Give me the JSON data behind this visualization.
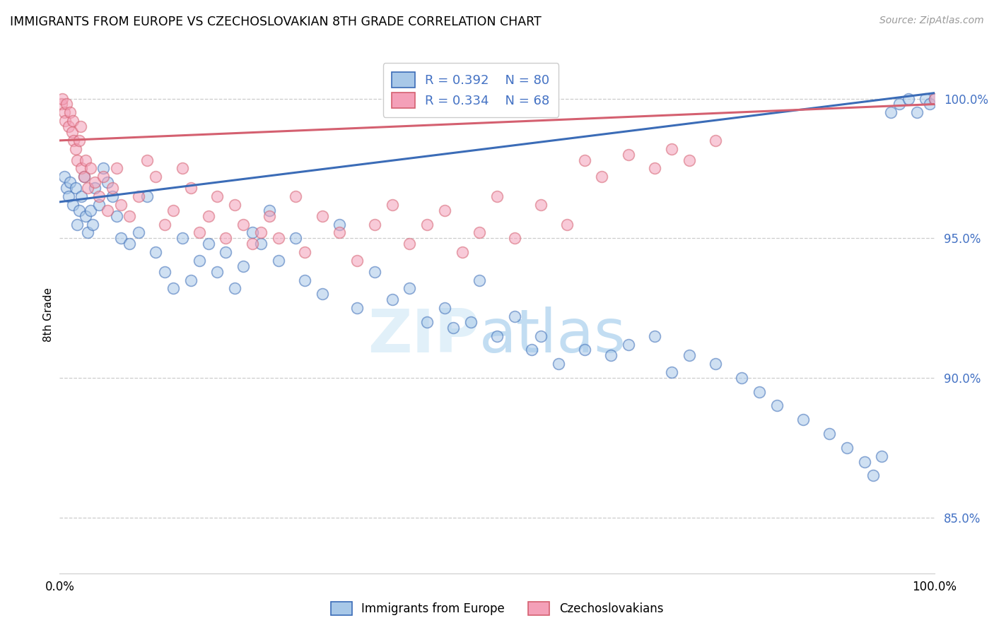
{
  "title": "IMMIGRANTS FROM EUROPE VS CZECHOSLOVAKIAN 8TH GRADE CORRELATION CHART",
  "source": "Source: ZipAtlas.com",
  "ylabel": "8th Grade",
  "legend_blue_label": "Immigrants from Europe",
  "legend_pink_label": "Czechoslovakians",
  "legend_blue_r": "R = 0.392",
  "legend_blue_n": "N = 80",
  "legend_pink_r": "R = 0.334",
  "legend_pink_n": "N = 68",
  "blue_color": "#A8C8E8",
  "pink_color": "#F4A0B8",
  "blue_line_color": "#3B6CB7",
  "pink_line_color": "#D46070",
  "ylim_min": 83.0,
  "ylim_max": 101.5,
  "xlim_min": 0.0,
  "xlim_max": 100.0,
  "y_ticks": [
    85.0,
    90.0,
    95.0,
    100.0
  ],
  "blue_scatter_x": [
    0.5,
    0.8,
    1.0,
    1.2,
    1.5,
    1.8,
    2.0,
    2.2,
    2.5,
    2.8,
    3.0,
    3.2,
    3.5,
    3.8,
    4.0,
    4.5,
    5.0,
    5.5,
    6.0,
    6.5,
    7.0,
    8.0,
    9.0,
    10.0,
    11.0,
    12.0,
    13.0,
    14.0,
    15.0,
    16.0,
    17.0,
    18.0,
    19.0,
    20.0,
    21.0,
    22.0,
    23.0,
    24.0,
    25.0,
    27.0,
    28.0,
    30.0,
    32.0,
    34.0,
    36.0,
    38.0,
    40.0,
    42.0,
    44.0,
    45.0,
    47.0,
    48.0,
    50.0,
    52.0,
    54.0,
    55.0,
    57.0,
    60.0,
    63.0,
    65.0,
    68.0,
    70.0,
    72.0,
    75.0,
    78.0,
    80.0,
    82.0,
    85.0,
    88.0,
    90.0,
    92.0,
    93.0,
    94.0,
    95.0,
    96.0,
    97.0,
    98.0,
    99.0,
    99.5,
    100.0
  ],
  "blue_scatter_y": [
    97.2,
    96.8,
    96.5,
    97.0,
    96.2,
    96.8,
    95.5,
    96.0,
    96.5,
    97.2,
    95.8,
    95.2,
    96.0,
    95.5,
    96.8,
    96.2,
    97.5,
    97.0,
    96.5,
    95.8,
    95.0,
    94.8,
    95.2,
    96.5,
    94.5,
    93.8,
    93.2,
    95.0,
    93.5,
    94.2,
    94.8,
    93.8,
    94.5,
    93.2,
    94.0,
    95.2,
    94.8,
    96.0,
    94.2,
    95.0,
    93.5,
    93.0,
    95.5,
    92.5,
    93.8,
    92.8,
    93.2,
    92.0,
    92.5,
    91.8,
    92.0,
    93.5,
    91.5,
    92.2,
    91.0,
    91.5,
    90.5,
    91.0,
    90.8,
    91.2,
    91.5,
    90.2,
    90.8,
    90.5,
    90.0,
    89.5,
    89.0,
    88.5,
    88.0,
    87.5,
    87.0,
    86.5,
    87.2,
    99.5,
    99.8,
    100.0,
    99.5,
    100.0,
    99.8,
    100.0
  ],
  "pink_scatter_x": [
    0.2,
    0.3,
    0.5,
    0.6,
    0.8,
    1.0,
    1.2,
    1.4,
    1.5,
    1.6,
    1.8,
    2.0,
    2.2,
    2.4,
    2.5,
    2.8,
    3.0,
    3.2,
    3.5,
    4.0,
    4.5,
    5.0,
    5.5,
    6.0,
    6.5,
    7.0,
    8.0,
    9.0,
    10.0,
    11.0,
    12.0,
    13.0,
    14.0,
    15.0,
    16.0,
    17.0,
    18.0,
    19.0,
    20.0,
    21.0,
    22.0,
    23.0,
    24.0,
    25.0,
    27.0,
    28.0,
    30.0,
    32.0,
    34.0,
    36.0,
    38.0,
    40.0,
    42.0,
    44.0,
    46.0,
    48.0,
    50.0,
    52.0,
    55.0,
    58.0,
    60.0,
    62.0,
    65.0,
    68.0,
    70.0,
    72.0,
    75.0,
    100.0
  ],
  "pink_scatter_y": [
    99.8,
    100.0,
    99.5,
    99.2,
    99.8,
    99.0,
    99.5,
    98.8,
    99.2,
    98.5,
    98.2,
    97.8,
    98.5,
    99.0,
    97.5,
    97.2,
    97.8,
    96.8,
    97.5,
    97.0,
    96.5,
    97.2,
    96.0,
    96.8,
    97.5,
    96.2,
    95.8,
    96.5,
    97.8,
    97.2,
    95.5,
    96.0,
    97.5,
    96.8,
    95.2,
    95.8,
    96.5,
    95.0,
    96.2,
    95.5,
    94.8,
    95.2,
    95.8,
    95.0,
    96.5,
    94.5,
    95.8,
    95.2,
    94.2,
    95.5,
    96.2,
    94.8,
    95.5,
    96.0,
    94.5,
    95.2,
    96.5,
    95.0,
    96.2,
    95.5,
    97.8,
    97.2,
    98.0,
    97.5,
    98.2,
    97.8,
    98.5,
    100.0
  ]
}
